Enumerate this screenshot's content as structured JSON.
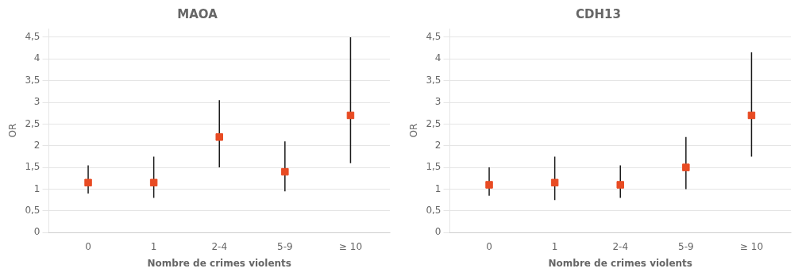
{
  "chart_data": [
    {
      "type": "scatter",
      "title": "MAOA",
      "xlabel": "Nombre de crimes violents",
      "ylabel": "OR",
      "categories": [
        "0",
        "1",
        "2-4",
        "5-9",
        "≥ 10"
      ],
      "values": [
        1.15,
        1.15,
        2.2,
        1.4,
        2.7
      ],
      "ci_low": [
        0.9,
        0.8,
        1.5,
        0.95,
        1.6
      ],
      "ci_high": [
        1.55,
        1.75,
        3.05,
        2.1,
        4.5
      ],
      "color": "#e84b23",
      "marker": "square",
      "ylim": [
        0,
        4.7
      ],
      "yticks": [
        0,
        {
          "value": 0.5,
          "label": "0,5"
        },
        1,
        {
          "value": 1.5,
          "label": "1,5"
        },
        2,
        {
          "value": 2.5,
          "label": "2,5"
        },
        3,
        {
          "value": 3.5,
          "label": "3,5"
        },
        4,
        {
          "value": 4.5,
          "label": "4,5"
        }
      ],
      "grid": true
    },
    {
      "type": "scatter",
      "title": "CDH13",
      "xlabel": "Nombre de crimes violents",
      "ylabel": "OR",
      "categories": [
        "0",
        "1",
        "2-4",
        "5-9",
        "≥ 10"
      ],
      "values": [
        1.1,
        1.15,
        1.1,
        1.5,
        2.7
      ],
      "ci_low": [
        0.85,
        0.75,
        0.8,
        1.0,
        1.75
      ],
      "ci_high": [
        1.5,
        1.75,
        1.55,
        2.2,
        4.15
      ],
      "color": "#e84b23",
      "marker": "square",
      "ylim": [
        0,
        4.7
      ],
      "yticks": [
        0,
        {
          "value": 0.5,
          "label": "0,5"
        },
        1,
        {
          "value": 1.5,
          "label": "1,5"
        },
        2,
        {
          "value": 2.5,
          "label": "2,5"
        },
        3,
        {
          "value": 3.5,
          "label": "3,5"
        },
        4,
        {
          "value": 4.5,
          "label": "4,5"
        }
      ],
      "grid": true
    }
  ]
}
